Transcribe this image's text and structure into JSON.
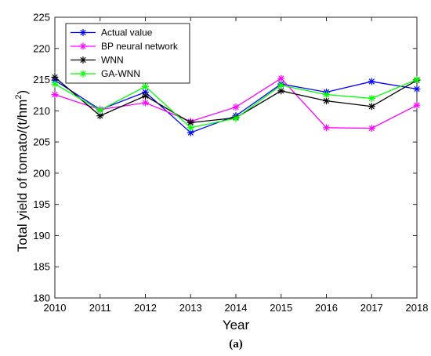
{
  "chart_data": {
    "type": "line",
    "xlabel": "Year",
    "ylabel": "Total yield of tomato/(t/hm",
    "ylabel_sup": "2",
    "ylabel_close": ")",
    "caption_open": "(",
    "caption_bold": "a",
    "caption_close": ")",
    "x": [
      2010,
      2011,
      2012,
      2013,
      2014,
      2015,
      2016,
      2017,
      2018
    ],
    "xlim": [
      2010,
      2018
    ],
    "ylim": [
      180,
      225
    ],
    "yticks": [
      180,
      185,
      190,
      195,
      200,
      205,
      210,
      215,
      220,
      225
    ],
    "grid": false,
    "legend_position": "top-left",
    "series": [
      {
        "name": "Actual value",
        "color": "#0000ff",
        "values": [
          214.9,
          210.2,
          213.0,
          206.5,
          209.2,
          214.3,
          213.0,
          214.7,
          213.5
        ]
      },
      {
        "name": "BP neural network",
        "color": "#ff00ff",
        "values": [
          212.6,
          210.2,
          211.3,
          208.3,
          210.6,
          215.2,
          207.3,
          207.2,
          210.9
        ]
      },
      {
        "name": "WNN",
        "color": "#000000",
        "values": [
          215.4,
          209.2,
          212.4,
          208.1,
          208.9,
          213.2,
          211.6,
          210.7,
          214.9
        ]
      },
      {
        "name": "GA-WNN",
        "color": "#00ff00",
        "values": [
          214.3,
          210.1,
          213.9,
          207.3,
          208.8,
          214.1,
          212.6,
          212.0,
          215.0
        ]
      }
    ]
  }
}
